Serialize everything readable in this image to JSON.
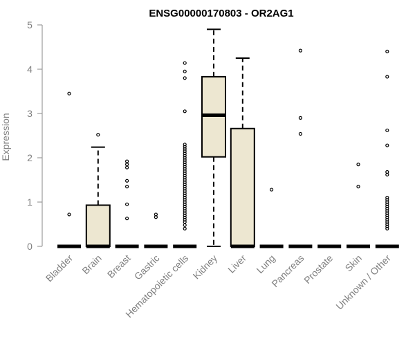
{
  "chart_data": {
    "type": "boxplot",
    "title": "ENSG00000170803 - OR2AG1",
    "xlabel": "",
    "ylabel": "Expression",
    "ylim": [
      0,
      5
    ],
    "yticks": [
      0,
      1,
      2,
      3,
      4,
      5
    ],
    "grid": false,
    "legend": "none",
    "colors": {
      "box_fill": "#ede7d1",
      "axis": "#8a8a8a",
      "labels": "#7f7f7f"
    },
    "categories": [
      "Bladder",
      "Brain",
      "Breast",
      "Gastric",
      "Hematopoietic cells",
      "Kidney",
      "Liver",
      "Lung",
      "Pancreas",
      "Prostate",
      "Skin",
      "Unknown / Other"
    ],
    "series": [
      {
        "category": "Bladder",
        "q1": 0,
        "median": 0,
        "q3": 0,
        "whisker_low": 0,
        "whisker_high": 0,
        "outliers": [
          3.45,
          0.72
        ]
      },
      {
        "category": "Brain",
        "q1": 0,
        "median": 0,
        "q3": 0.93,
        "whisker_low": 0,
        "whisker_high": 2.24,
        "outliers": [
          2.52
        ]
      },
      {
        "category": "Breast",
        "q1": 0,
        "median": 0,
        "q3": 0,
        "whisker_low": 0,
        "whisker_high": 0,
        "outliers": [
          1.92,
          1.85,
          1.78,
          1.48,
          1.35,
          0.95,
          0.63
        ]
      },
      {
        "category": "Gastric",
        "q1": 0,
        "median": 0,
        "q3": 0,
        "whisker_low": 0,
        "whisker_high": 0,
        "outliers": [
          0.72,
          0.66
        ]
      },
      {
        "category": "Hematopoietic cells",
        "q1": 0,
        "median": 0,
        "q3": 0,
        "whisker_low": 0,
        "whisker_high": 0,
        "outliers": [
          4.14,
          3.95,
          3.8,
          3.05,
          2.3,
          2.25,
          2.2,
          2.15,
          2.1,
          2.05,
          2.0,
          1.95,
          1.9,
          1.85,
          1.8,
          1.75,
          1.7,
          1.65,
          1.6,
          1.55,
          1.5,
          1.45,
          1.4,
          1.35,
          1.3,
          1.25,
          1.2,
          1.15,
          1.1,
          1.05,
          1.0,
          0.95,
          0.9,
          0.85,
          0.8,
          0.75,
          0.7,
          0.65,
          0.6,
          0.55,
          0.48,
          0.4
        ]
      },
      {
        "category": "Kidney",
        "q1": 2.02,
        "median": 2.96,
        "q3": 3.83,
        "whisker_low": 0,
        "whisker_high": 4.9,
        "outliers": []
      },
      {
        "category": "Liver",
        "q1": 0,
        "median": 0,
        "q3": 2.66,
        "whisker_low": 0,
        "whisker_high": 4.25,
        "outliers": []
      },
      {
        "category": "Lung",
        "q1": 0,
        "median": 0,
        "q3": 0,
        "whisker_low": 0,
        "whisker_high": 0,
        "outliers": [
          1.28
        ]
      },
      {
        "category": "Pancreas",
        "q1": 0,
        "median": 0,
        "q3": 0,
        "whisker_low": 0,
        "whisker_high": 0,
        "outliers": [
          4.42,
          2.9,
          2.54
        ]
      },
      {
        "category": "Prostate",
        "q1": 0,
        "median": 0,
        "q3": 0,
        "whisker_low": 0,
        "whisker_high": 0,
        "outliers": []
      },
      {
        "category": "Skin",
        "q1": 0,
        "median": 0,
        "q3": 0,
        "whisker_low": 0,
        "whisker_high": 0,
        "outliers": [
          1.85,
          1.35
        ]
      },
      {
        "category": "Unknown / Other",
        "q1": 0,
        "median": 0,
        "q3": 0,
        "whisker_low": 0,
        "whisker_high": 0,
        "outliers": [
          4.4,
          3.83,
          2.62,
          2.28,
          1.68,
          1.62,
          1.1,
          1.05,
          1.0,
          0.95,
          0.9,
          0.85,
          0.8,
          0.75,
          0.7,
          0.65,
          0.6,
          0.55,
          0.5,
          0.45,
          0.4
        ]
      }
    ]
  }
}
